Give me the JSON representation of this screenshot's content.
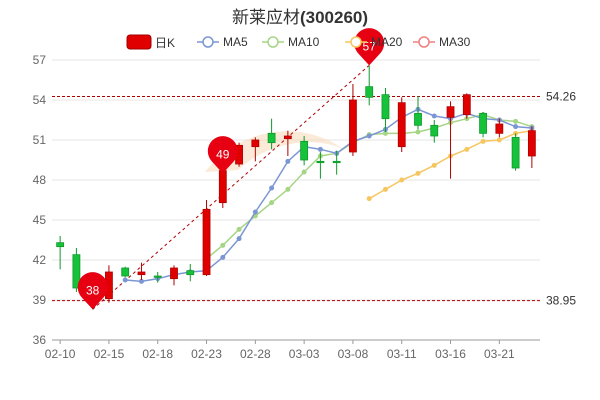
{
  "title": {
    "name": "新莱应材",
    "code": "(300260)"
  },
  "colors": {
    "up": "#e00000",
    "down": "#16c23a",
    "ma5": "#7b96d4",
    "ma10": "#a6d585",
    "ma20": "#f6c65f",
    "ma30": "#f07f7f",
    "grid": "#e5e5e5",
    "level_line": "#b00000",
    "pin": "#e60012"
  },
  "chart_data": {
    "type": "candlestick",
    "title": "新莱应材(300260)",
    "legend": [
      {
        "key": "k",
        "label": "日K",
        "icon": "filled-rect"
      },
      {
        "key": "ma5",
        "label": "MA5",
        "icon": "circle-line"
      },
      {
        "key": "ma10",
        "label": "MA10",
        "icon": "circle-line"
      },
      {
        "key": "ma20",
        "label": "MA20",
        "icon": "circle-line"
      },
      {
        "key": "ma30",
        "label": "MA30",
        "icon": "circle-line"
      }
    ],
    "legend_placement": "top-center",
    "ylim": [
      36,
      57
    ],
    "yticks": [
      36,
      39,
      42,
      45,
      48,
      51,
      54,
      57
    ],
    "grid": true,
    "xtick_labels": [
      "02-10",
      "02-15",
      "02-18",
      "02-23",
      "02-28",
      "03-03",
      "03-08",
      "03-11",
      "03-16",
      "03-21"
    ],
    "xtick_positions": [
      0,
      3,
      6,
      9,
      12,
      15,
      18,
      21,
      24,
      27
    ],
    "candles": [
      {
        "date": "02-10",
        "open": 43.3,
        "close": 43.0,
        "high": 43.8,
        "low": 41.3
      },
      {
        "date": "02-11",
        "open": 42.4,
        "close": 39.9,
        "high": 42.9,
        "low": 39.6
      },
      {
        "date": "02-14",
        "open": 39.7,
        "close": 39.5,
        "high": 40.2,
        "low": 38.3
      },
      {
        "date": "02-15",
        "open": 39.1,
        "close": 41.1,
        "high": 41.6,
        "low": 38.8
      },
      {
        "date": "02-16",
        "open": 41.4,
        "close": 40.8,
        "high": 41.5,
        "low": 40.7
      },
      {
        "date": "02-17",
        "open": 40.9,
        "close": 41.1,
        "high": 41.8,
        "low": 40.5
      },
      {
        "date": "02-18",
        "open": 40.8,
        "close": 40.7,
        "high": 41.1,
        "low": 40.3
      },
      {
        "date": "02-21",
        "open": 40.6,
        "close": 41.4,
        "high": 41.6,
        "low": 40.1
      },
      {
        "date": "02-22",
        "open": 41.2,
        "close": 40.9,
        "high": 41.7,
        "low": 40.4
      },
      {
        "date": "02-23",
        "open": 40.9,
        "close": 45.8,
        "high": 46.5,
        "low": 40.8
      },
      {
        "date": "02-24",
        "open": 46.3,
        "close": 48.7,
        "high": 49.5,
        "low": 45.9
      },
      {
        "date": "02-25",
        "open": 49.2,
        "close": 50.6,
        "high": 50.8,
        "low": 49.0
      },
      {
        "date": "02-28",
        "open": 50.5,
        "close": 51.0,
        "high": 51.2,
        "low": 49.4
      },
      {
        "date": "03-01",
        "open": 51.5,
        "close": 50.8,
        "high": 52.6,
        "low": 50.3
      },
      {
        "date": "03-02",
        "open": 51.1,
        "close": 51.3,
        "high": 51.7,
        "low": 49.8
      },
      {
        "date": "03-03",
        "open": 50.9,
        "close": 49.5,
        "high": 51.3,
        "low": 49.1
      },
      {
        "date": "03-04",
        "open": 49.4,
        "close": 49.3,
        "high": 50.1,
        "low": 48.1
      },
      {
        "date": "03-07",
        "open": 49.4,
        "close": 49.3,
        "high": 50.2,
        "low": 48.4
      },
      {
        "date": "03-08",
        "open": 50.1,
        "close": 54.0,
        "high": 55.2,
        "low": 49.8
      },
      {
        "date": "03-09",
        "open": 55.0,
        "close": 54.2,
        "high": 56.6,
        "low": 53.6
      },
      {
        "date": "03-10",
        "open": 54.4,
        "close": 52.6,
        "high": 54.9,
        "low": 51.6
      },
      {
        "date": "03-11",
        "open": 50.5,
        "close": 53.8,
        "high": 54.2,
        "low": 50.1
      },
      {
        "date": "03-14",
        "open": 53.0,
        "close": 52.1,
        "high": 54.3,
        "low": 51.8
      },
      {
        "date": "03-15",
        "open": 52.1,
        "close": 51.3,
        "high": 52.5,
        "low": 50.8
      },
      {
        "date": "03-16",
        "open": 52.7,
        "close": 53.5,
        "high": 53.9,
        "low": 48.1
      },
      {
        "date": "03-17",
        "open": 52.9,
        "close": 54.4,
        "high": 54.5,
        "low": 52.6
      },
      {
        "date": "03-18",
        "open": 53.0,
        "close": 51.5,
        "high": 53.1,
        "low": 51.2
      },
      {
        "date": "03-21",
        "open": 51.5,
        "close": 52.2,
        "high": 52.6,
        "low": 51.2
      },
      {
        "date": "03-22",
        "open": 51.2,
        "close": 48.9,
        "high": 51.5,
        "low": 48.7
      },
      {
        "date": "03-23",
        "open": 49.8,
        "close": 51.7,
        "high": 52.0,
        "low": 48.9
      }
    ],
    "ma5": [
      null,
      null,
      null,
      null,
      40.5,
      40.4,
      40.6,
      40.9,
      41.1,
      41.2,
      42.2,
      43.6,
      45.6,
      47.4,
      49.4,
      50.5,
      50.3,
      50.0,
      50.9,
      51.3,
      51.8,
      52.7,
      53.3,
      52.8,
      52.6,
      53.0,
      52.6,
      52.5,
      52.0,
      51.9
    ],
    "ma10": [
      null,
      null,
      null,
      null,
      null,
      null,
      null,
      null,
      null,
      42.1,
      43.1,
      44.3,
      45.3,
      46.3,
      47.3,
      48.6,
      49.8,
      50.0,
      50.8,
      51.4,
      51.5,
      51.5,
      51.6,
      51.9,
      52.3,
      52.6,
      52.9,
      52.5,
      52.4,
      52.0
    ],
    "ma20": [
      null,
      null,
      null,
      null,
      null,
      null,
      null,
      null,
      null,
      null,
      null,
      null,
      null,
      null,
      null,
      null,
      null,
      null,
      null,
      46.6,
      47.3,
      48.0,
      48.5,
      49.1,
      49.8,
      50.3,
      50.9,
      51.0,
      51.5,
      51.7
    ],
    "ma30": [],
    "levels": [
      {
        "value": 54.26,
        "label": "54.26"
      },
      {
        "value": 38.95,
        "label": "38.95"
      }
    ],
    "markers": [
      {
        "index": 2,
        "value": 38.3,
        "label": "38"
      },
      {
        "index": 10,
        "value": 48.5,
        "label": "49"
      },
      {
        "index": 19,
        "value": 56.6,
        "label": "57"
      }
    ],
    "trend_line": {
      "from": {
        "index": 2,
        "value": 38.3
      },
      "to": {
        "index": 19,
        "value": 56.6
      }
    }
  }
}
